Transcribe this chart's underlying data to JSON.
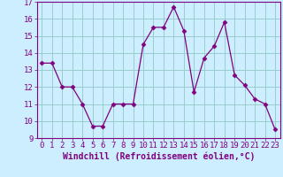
{
  "x": [
    0,
    1,
    2,
    3,
    4,
    5,
    6,
    7,
    8,
    9,
    10,
    11,
    12,
    13,
    14,
    15,
    16,
    17,
    18,
    19,
    20,
    21,
    22,
    23
  ],
  "y": [
    13.4,
    13.4,
    12.0,
    12.0,
    11.0,
    9.7,
    9.7,
    11.0,
    11.0,
    11.0,
    14.5,
    15.5,
    15.5,
    16.7,
    15.3,
    11.7,
    13.7,
    14.4,
    15.8,
    12.7,
    12.1,
    11.3,
    11.0,
    9.5
  ],
  "line_color": "#800080",
  "marker": "D",
  "marker_size": 2.5,
  "bg_color": "#cceeff",
  "grid_color": "#99cccc",
  "xlabel": "Windchill (Refroidissement éolien,°C)",
  "xlabel_fontsize": 7,
  "tick_fontsize": 6.5,
  "ylim": [
    9,
    17
  ],
  "yticks": [
    9,
    10,
    11,
    12,
    13,
    14,
    15,
    16,
    17
  ],
  "xlim": [
    -0.5,
    23.5
  ],
  "xticks": [
    0,
    1,
    2,
    3,
    4,
    5,
    6,
    7,
    8,
    9,
    10,
    11,
    12,
    13,
    14,
    15,
    16,
    17,
    18,
    19,
    20,
    21,
    22,
    23
  ]
}
